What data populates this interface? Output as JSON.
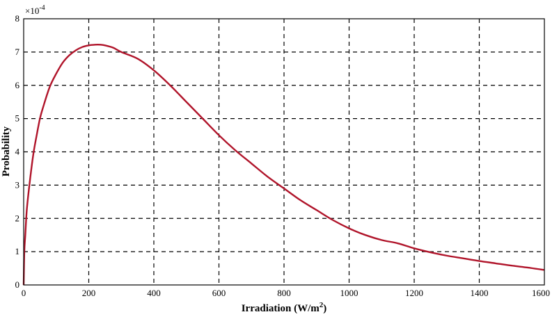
{
  "chart_data": {
    "type": "line",
    "xlabel": "Irradiation (W/m",
    "xlabel_sup": "2",
    "xlabel_end": ")",
    "ylabel": "Probability",
    "y_multiplier": "×10",
    "y_multiplier_exp": "-4",
    "xlim": [
      0,
      1600
    ],
    "ylim": [
      0,
      8
    ],
    "xticks": [
      0,
      200,
      400,
      600,
      800,
      1000,
      1200,
      1400,
      1600
    ],
    "yticks": [
      0,
      1,
      2,
      3,
      4,
      5,
      6,
      7,
      8
    ],
    "grid": true,
    "line_color": "#b0142a",
    "series": [
      {
        "x": [
          0,
          2,
          5,
          10,
          20,
          30,
          40,
          50,
          60,
          80,
          100,
          120,
          140,
          160,
          180,
          200,
          220,
          235,
          250,
          275,
          300,
          350,
          400,
          450,
          500,
          550,
          600,
          650,
          700,
          750,
          800,
          850,
          900,
          950,
          1000,
          1050,
          1100,
          1150,
          1200,
          1250,
          1300,
          1350,
          1400,
          1450,
          1500,
          1550,
          1600
        ],
        "values": [
          0,
          1.0,
          1.5,
          2.3,
          3.2,
          3.95,
          4.5,
          5.0,
          5.35,
          5.95,
          6.35,
          6.68,
          6.9,
          7.05,
          7.15,
          7.2,
          7.22,
          7.22,
          7.2,
          7.13,
          7.0,
          6.8,
          6.45,
          6.0,
          5.5,
          5.0,
          4.5,
          4.05,
          3.65,
          3.25,
          2.9,
          2.55,
          2.25,
          1.95,
          1.7,
          1.5,
          1.35,
          1.25,
          1.1,
          0.98,
          0.88,
          0.8,
          0.72,
          0.65,
          0.58,
          0.52,
          0.45
        ]
      }
    ]
  }
}
